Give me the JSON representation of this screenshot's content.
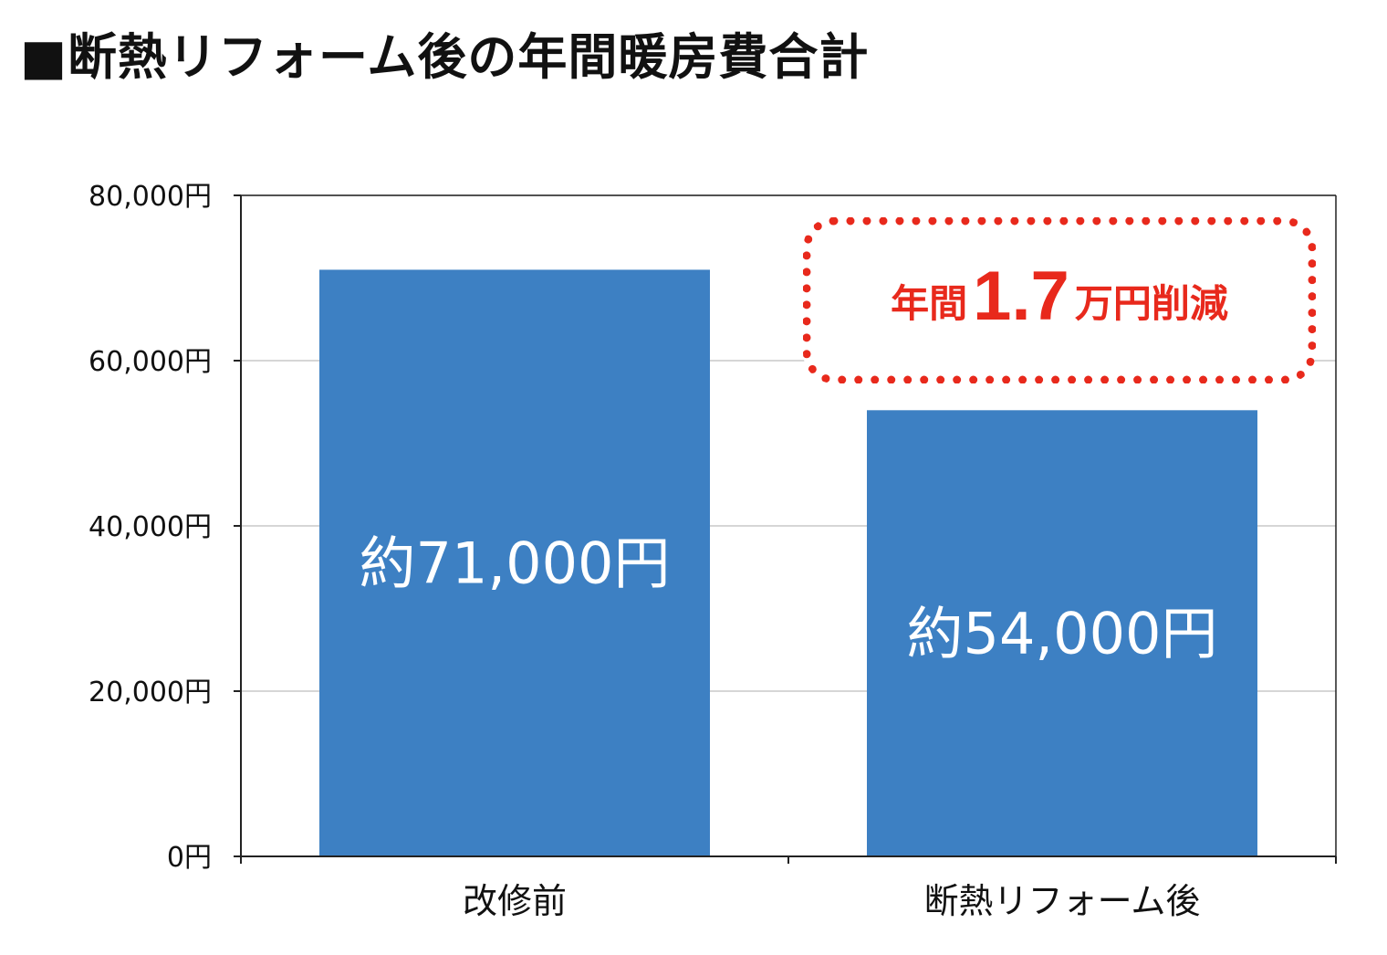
{
  "chart_data": {
    "type": "bar",
    "title": "■断熱リフォーム後の年間暖房費合計",
    "categories": [
      "改修前",
      "断熱リフォーム後"
    ],
    "values": [
      71000,
      54000
    ],
    "data_labels": [
      "約71,000円",
      "約54,000円"
    ],
    "ylim": [
      0,
      80000
    ],
    "yticks": [
      0,
      20000,
      40000,
      60000,
      80000
    ],
    "ytick_labels": [
      "0円",
      "20,000円",
      "40,000円",
      "60,000円",
      "80,000円"
    ],
    "xlabel": "",
    "ylabel": "",
    "grid": true,
    "legend": "none",
    "bar_color": "#3d80c3",
    "annotation": {
      "prefix": "年間",
      "number": "1.7",
      "suffix": "万円削減",
      "color": "#e8291c"
    }
  }
}
